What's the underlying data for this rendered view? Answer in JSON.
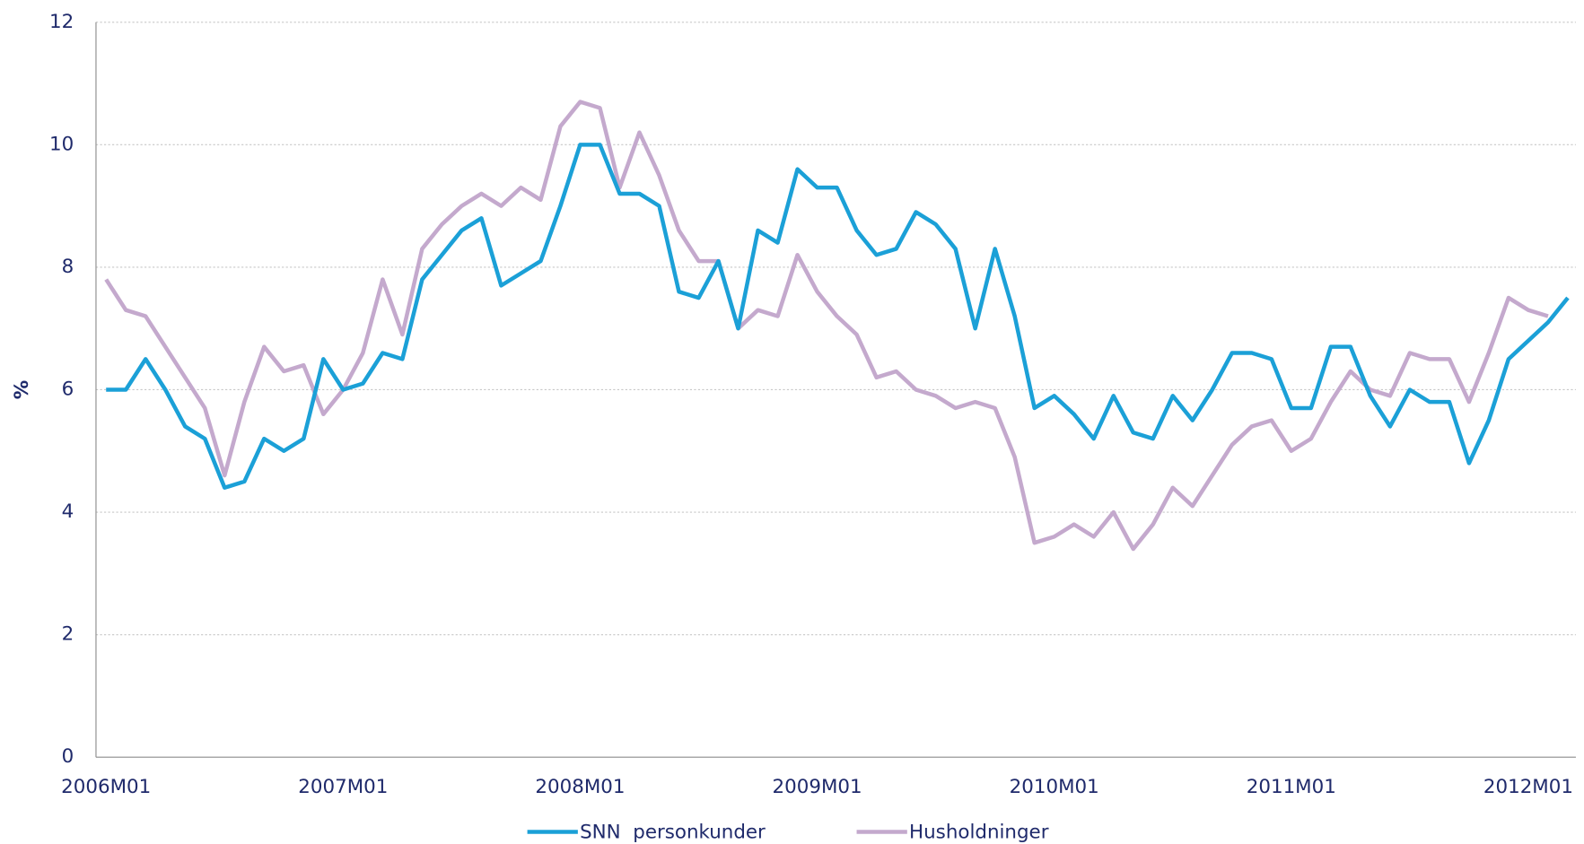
{
  "chart_data": {
    "type": "line",
    "y_label": "%",
    "categories": [
      "2006M01",
      null,
      null,
      null,
      null,
      null,
      null,
      null,
      null,
      null,
      null,
      null,
      "2007M01",
      null,
      null,
      null,
      null,
      null,
      null,
      null,
      null,
      null,
      null,
      null,
      "2008M01",
      null,
      null,
      null,
      null,
      null,
      null,
      null,
      null,
      null,
      null,
      null,
      "2009M01",
      null,
      null,
      null,
      null,
      null,
      null,
      null,
      null,
      null,
      null,
      null,
      "2010M01",
      null,
      null,
      null,
      null,
      null,
      null,
      null,
      null,
      null,
      null,
      null,
      "2011M01",
      null,
      null,
      null,
      null,
      null,
      null,
      null,
      null,
      null,
      null,
      null,
      "2012M01",
      null,
      null
    ],
    "series": [
      {
        "name": "SNN  personkunder",
        "color": "#1ba0d7",
        "values": [
          6.0,
          6.0,
          6.5,
          6.0,
          5.4,
          5.2,
          4.4,
          4.5,
          5.2,
          5.0,
          5.2,
          6.5,
          6.0,
          6.1,
          6.6,
          6.5,
          7.8,
          8.2,
          8.6,
          8.8,
          7.7,
          7.9,
          8.1,
          9.0,
          10.0,
          10.0,
          9.2,
          9.2,
          9.0,
          7.6,
          7.5,
          8.1,
          7.0,
          8.6,
          8.4,
          9.6,
          9.3,
          9.3,
          8.6,
          8.2,
          8.3,
          8.9,
          8.7,
          8.3,
          7.0,
          8.3,
          7.2,
          5.7,
          5.9,
          5.6,
          5.2,
          5.9,
          5.3,
          5.2,
          5.9,
          5.5,
          6.0,
          6.6,
          6.6,
          6.5,
          5.7,
          5.7,
          6.7,
          6.7,
          5.9,
          5.4,
          6.0,
          5.8,
          5.8,
          4.8,
          5.5,
          6.5,
          6.8,
          7.1,
          7.5
        ]
      },
      {
        "name": "Husholdninger",
        "color": "#c4a9cd",
        "values": [
          7.8,
          7.3,
          7.2,
          6.7,
          6.2,
          5.7,
          4.6,
          5.8,
          6.7,
          6.3,
          6.4,
          5.6,
          6.0,
          6.6,
          7.8,
          6.9,
          8.3,
          8.7,
          9.0,
          9.2,
          9.0,
          9.3,
          9.1,
          10.3,
          10.7,
          10.6,
          9.3,
          10.2,
          9.5,
          8.6,
          8.1,
          8.1,
          7.0,
          7.3,
          7.2,
          8.2,
          7.6,
          7.2,
          6.9,
          6.2,
          6.3,
          6.0,
          5.9,
          5.7,
          5.8,
          5.7,
          4.9,
          3.5,
          3.6,
          3.8,
          3.6,
          4.0,
          3.4,
          3.8,
          4.4,
          4.1,
          4.6,
          5.1,
          5.4,
          5.5,
          5.0,
          5.2,
          5.8,
          6.3,
          6.0,
          5.9,
          6.6,
          6.5,
          6.5,
          5.8,
          6.6,
          7.5,
          7.3,
          7.2,
          null
        ]
      }
    ],
    "ylim": [
      0,
      12
    ],
    "yticks": [
      0,
      2,
      4,
      6,
      8,
      10,
      12
    ],
    "grid": true,
    "legend": "bottom"
  }
}
